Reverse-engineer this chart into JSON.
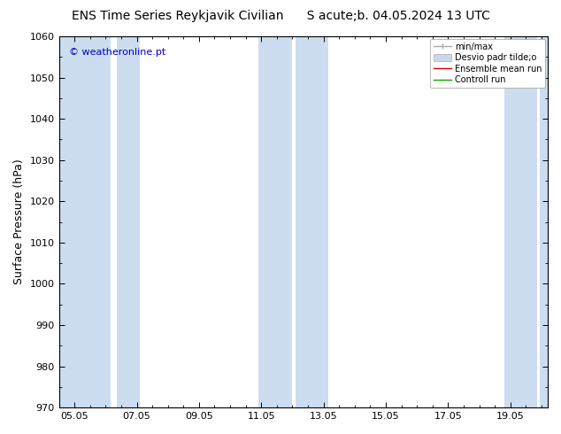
{
  "title": "ENS Time Series Reykjavik Civilian      S acute;b. 04.05.2024 13 UTC",
  "ylabel": "Surface Pressure (hPa)",
  "ylim": [
    970,
    1060
  ],
  "yticks": [
    970,
    980,
    990,
    1000,
    1010,
    1020,
    1030,
    1040,
    1050,
    1060
  ],
  "xlabels": [
    "05.05",
    "07.05",
    "09.05",
    "11.05",
    "13.05",
    "15.05",
    "17.05",
    "19.05"
  ],
  "xvalues": [
    0,
    2,
    4,
    6,
    8,
    10,
    12,
    14
  ],
  "xlim": [
    -0.5,
    15.2
  ],
  "bg_color": "#ffffff",
  "plot_bg_color": "#ffffff",
  "band_color": "#ccddf0",
  "shaded_ranges": [
    [
      -0.5,
      1.15
    ],
    [
      1.35,
      2.1
    ],
    [
      5.9,
      7.0
    ],
    [
      7.1,
      8.15
    ],
    [
      13.8,
      14.85
    ],
    [
      14.95,
      15.2
    ]
  ],
  "watermark": "© weatheronline.pt",
  "watermark_color": "#0000cc",
  "legend_labels": [
    "min/max",
    "Desvio padr tilde;o",
    "Ensemble mean run",
    "Controll run"
  ],
  "legend_colors": [
    "#aaaaaa",
    "#c8d8e8",
    "#cc0000",
    "#00aa00"
  ],
  "title_fontsize": 10,
  "tick_fontsize": 8,
  "ylabel_fontsize": 9,
  "watermark_fontsize": 8
}
